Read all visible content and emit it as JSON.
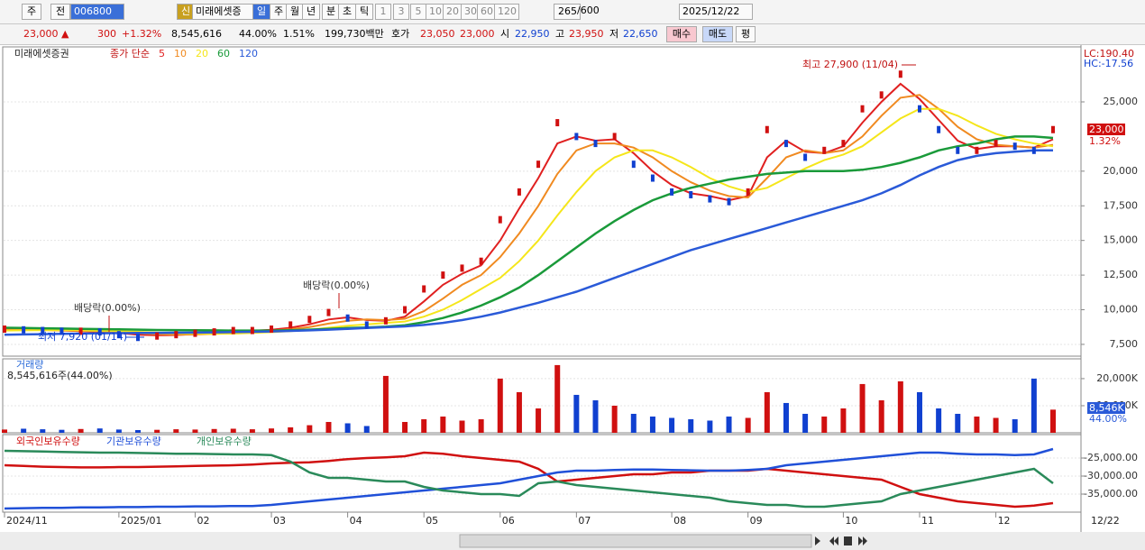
{
  "toolbar": {
    "market": "주",
    "scope": "전",
    "code": "006800",
    "credit": "신",
    "name": "미래에셋증",
    "periods": [
      "일",
      "주",
      "월",
      "년",
      "분",
      "초",
      "틱"
    ],
    "intervals": [
      "1",
      "3",
      "5",
      "10",
      "20",
      "30",
      "60",
      "120"
    ],
    "count": "265",
    "max": "/600",
    "date": "2025/12/22"
  },
  "quote": {
    "price": "23,000 ▲",
    "change": "300",
    "rate": "+1.32%",
    "volume": "8,545,616",
    "volume_rate": "44.00%",
    "turnover": "1.51%",
    "amount": "199,730백만",
    "ask_label": "호가",
    "ask": "23,050",
    "bid": "23,000",
    "open_label": "시",
    "open": "22,950",
    "high_label": "고",
    "high": "23,950",
    "low_label": "저",
    "low": "22,650",
    "buy": "매수",
    "sell": "매도",
    "avg": "평"
  },
  "chart_data": [
    {
      "type": "candle",
      "title": "미래에셋증권",
      "subtitle": "종가 단순",
      "ylim": [
        6650,
        28970
      ],
      "yticks": [
        {
          "value": 7500,
          "label": "7,500"
        },
        {
          "value": 10000,
          "label": "10,000"
        },
        {
          "value": 12500,
          "label": "12,500"
        },
        {
          "value": 15000,
          "label": "15,000"
        },
        {
          "value": 17500,
          "label": "17,500"
        },
        {
          "value": 20000,
          "label": "20,000"
        },
        {
          "value": 25000,
          "label": "25,000"
        }
      ],
      "grid": true,
      "series": [
        {
          "color": "#1a3a8a",
          "values": [
            8600,
            8550,
            8500,
            8450,
            8450,
            8400,
            8200,
            8000,
            8100,
            8200,
            8300,
            8400,
            8500,
            8500,
            8600,
            8900,
            9300,
            9800,
            9400,
            8900,
            9200,
            10000,
            11500,
            12500,
            13000,
            13500,
            16500,
            18500,
            20500,
            23500,
            22500,
            22000,
            22500,
            20500,
            19500,
            18500,
            18300,
            18000,
            17800,
            18500,
            23000,
            22000,
            21000,
            21500,
            22000,
            24500,
            25500,
            27000,
            24500,
            23000,
            21500,
            21500,
            22000,
            21800,
            21500,
            23000
          ]
        },
        {
          "name": "5",
          "color": "#e02020",
          "values": [
            8600,
            8580,
            8540,
            8500,
            8460,
            8420,
            8330,
            8200,
            8150,
            8170,
            8250,
            8330,
            8420,
            8480,
            8550,
            8700,
            8950,
            9300,
            9450,
            9250,
            9200,
            9500,
            10600,
            11800,
            12600,
            13200,
            15000,
            17300,
            19500,
            22000,
            22500,
            22200,
            22300,
            21300,
            20000,
            19000,
            18400,
            18200,
            17900,
            18200,
            21000,
            22200,
            21400,
            21300,
            21800,
            23500,
            25000,
            26300,
            25200,
            23700,
            22200,
            21600,
            21800,
            21800,
            21700,
            22300
          ]
        },
        {
          "name": "10",
          "color": "#f08a20",
          "values": [
            8550,
            8560,
            8550,
            8520,
            8490,
            8450,
            8400,
            8300,
            8230,
            8200,
            8210,
            8260,
            8330,
            8400,
            8480,
            8600,
            8750,
            9000,
            9200,
            9300,
            9250,
            9350,
            9900,
            10800,
            11800,
            12500,
            13800,
            15500,
            17500,
            19800,
            21500,
            22000,
            22000,
            21700,
            21000,
            20000,
            19200,
            18600,
            18200,
            18100,
            19500,
            21000,
            21500,
            21300,
            21500,
            22500,
            24000,
            25300,
            25500,
            24500,
            23200,
            22300,
            21900,
            21800,
            21700,
            21900
          ]
        },
        {
          "name": "20",
          "color": "#f5e61a",
          "values": [
            8500,
            8510,
            8520,
            8520,
            8510,
            8490,
            8460,
            8410,
            8350,
            8300,
            8270,
            8260,
            8280,
            8320,
            8380,
            8450,
            8550,
            8700,
            8850,
            8950,
            9050,
            9150,
            9500,
            10000,
            10700,
            11500,
            12300,
            13500,
            15000,
            16800,
            18500,
            20000,
            21000,
            21500,
            21500,
            21000,
            20300,
            19500,
            18900,
            18500,
            18800,
            19500,
            20200,
            20800,
            21200,
            21800,
            22800,
            23800,
            24500,
            24500,
            24000,
            23300,
            22700,
            22300,
            22000,
            21800
          ]
        },
        {
          "name": "60",
          "color": "#1a9a3a",
          "values": [
            8700,
            8680,
            8660,
            8640,
            8620,
            8600,
            8580,
            8560,
            8540,
            8530,
            8520,
            8510,
            8500,
            8500,
            8500,
            8520,
            8560,
            8620,
            8680,
            8720,
            8780,
            8880,
            9100,
            9400,
            9800,
            10300,
            10900,
            11600,
            12500,
            13500,
            14500,
            15500,
            16400,
            17200,
            17900,
            18400,
            18800,
            19100,
            19400,
            19600,
            19800,
            19900,
            20000,
            20000,
            20000,
            20100,
            20300,
            20600,
            21000,
            21500,
            21800,
            22000,
            22300,
            22500,
            22500,
            22400
          ]
        },
        {
          "name": "120",
          "color": "#2a5ad8",
          "values": [
            8200,
            8220,
            8240,
            8260,
            8280,
            8300,
            8310,
            8320,
            8330,
            8340,
            8350,
            8370,
            8390,
            8410,
            8430,
            8470,
            8510,
            8560,
            8620,
            8680,
            8740,
            8800,
            8900,
            9050,
            9250,
            9500,
            9800,
            10150,
            10500,
            10900,
            11300,
            11800,
            12300,
            12800,
            13300,
            13800,
            14300,
            14700,
            15100,
            15500,
            15900,
            16300,
            16700,
            17100,
            17500,
            17900,
            18400,
            19000,
            19700,
            20300,
            20800,
            21100,
            21300,
            21400,
            21500,
            21500
          ]
        }
      ],
      "annotations": [
        "최고 27,900 (11/04)",
        "최저 7,920 (01/14)",
        "배당락(0.00%)",
        "배당락(0.00%)"
      ],
      "right_labels": [
        "LC:190.40",
        "HC:-17.56"
      ],
      "last_value_label": "23,000",
      "last_change_label": "1.32%"
    },
    {
      "type": "bar",
      "title": "거래량",
      "subtitle": "8,545,616주(44.00%)",
      "ylim": [
        0,
        27300
      ],
      "yticks": [
        {
          "value": 20000,
          "label": "20,000K"
        },
        {
          "value": 10000,
          "label": "10,000K"
        }
      ],
      "up_color": "#d01010",
      "down_color": "#1040d0",
      "values": [
        1200,
        1500,
        1300,
        1100,
        1400,
        1600,
        1200,
        1000,
        1100,
        1300,
        1200,
        1400,
        1500,
        1300,
        1600,
        2000,
        2800,
        4000,
        3500,
        2500,
        21000,
        4000,
        5000,
        6000,
        4500,
        5000,
        20000,
        15000,
        9000,
        25000,
        14000,
        12000,
        10000,
        7000,
        6000,
        5500,
        5000,
        4500,
        6000,
        5500,
        15000,
        11000,
        7000,
        6000,
        9000,
        18000,
        12000,
        19000,
        15000,
        9000,
        7000,
        6000,
        5500,
        5000,
        20000,
        8546
      ],
      "last_value_label": "8,546K",
      "last_rate_label": "44.00%"
    },
    {
      "type": "line",
      "ylim": [
        -40000,
        -18500
      ],
      "yticks": [
        {
          "value": -25000,
          "label": "-25,000.00"
        },
        {
          "value": -30000,
          "label": "-30,000.00"
        },
        {
          "value": -35000,
          "label": "-35,000.00"
        }
      ],
      "categories": [
        "2024/11",
        null,
        null,
        null,
        null,
        null,
        "2025/01",
        null,
        null,
        null,
        "02",
        null,
        null,
        null,
        "03",
        null,
        null,
        null,
        "04",
        null,
        null,
        null,
        "05",
        null,
        null,
        null,
        "06",
        null,
        null,
        null,
        "07",
        null,
        null,
        null,
        null,
        "08",
        null,
        null,
        null,
        "09",
        null,
        null,
        null,
        null,
        "10",
        null,
        null,
        null,
        "11",
        null,
        null,
        null,
        "12",
        null,
        null,
        null
      ],
      "end_label": "12/22",
      "series": [
        {
          "name": "외국인보유수량",
          "color": "#d01010",
          "values": [
            -27000,
            -27200,
            -27400,
            -27500,
            -27600,
            -27600,
            -27500,
            -27500,
            -27400,
            -27300,
            -27200,
            -27100,
            -27000,
            -26800,
            -26500,
            -26300,
            -26200,
            -25800,
            -25300,
            -25000,
            -24800,
            -24500,
            -23500,
            -23800,
            -24500,
            -25000,
            -25500,
            -26000,
            -28000,
            -31500,
            -31000,
            -30500,
            -30000,
            -29500,
            -29500,
            -29000,
            -29000,
            -28500,
            -28500,
            -28500,
            -28000,
            -28500,
            -29000,
            -29500,
            -30000,
            -30500,
            -31000,
            -33000,
            -35000,
            -36000,
            -37000,
            -37500,
            -38000,
            -38500,
            -38200,
            -37500
          ]
        },
        {
          "name": "기관보유수량",
          "color": "#2050d8",
          "values": [
            -39000,
            -38900,
            -38800,
            -38800,
            -38700,
            -38700,
            -38600,
            -38600,
            -38500,
            -38500,
            -38400,
            -38400,
            -38300,
            -38300,
            -38000,
            -37500,
            -37000,
            -36500,
            -36000,
            -35500,
            -35000,
            -34500,
            -34000,
            -33500,
            -33000,
            -32500,
            -32000,
            -31000,
            -30000,
            -29000,
            -28500,
            -28500,
            -28300,
            -28200,
            -28200,
            -28300,
            -28400,
            -28500,
            -28500,
            -28300,
            -28000,
            -27000,
            -26500,
            -26000,
            -25500,
            -25000,
            -24500,
            -24000,
            -23500,
            -23500,
            -23800,
            -24000,
            -24000,
            -24200,
            -24000,
            -22500
          ]
        },
        {
          "name": "개인보유수량",
          "color": "#2a8a5a",
          "values": [
            -23000,
            -23100,
            -23200,
            -23300,
            -23400,
            -23500,
            -23500,
            -23600,
            -23700,
            -23800,
            -23800,
            -23900,
            -24000,
            -24000,
            -24200,
            -26000,
            -29000,
            -30500,
            -30500,
            -31000,
            -31500,
            -31500,
            -33000,
            -34000,
            -34500,
            -35000,
            -35000,
            -35500,
            -32000,
            -31500,
            -32500,
            -33000,
            -33500,
            -34000,
            -34500,
            -35000,
            -35500,
            -36000,
            -37000,
            -37500,
            -38000,
            -38000,
            -38500,
            -38500,
            -38000,
            -37500,
            -37000,
            -35000,
            -34000,
            -33000,
            -32000,
            -31000,
            -30000,
            -29000,
            -28000,
            -32000
          ]
        }
      ]
    }
  ]
}
